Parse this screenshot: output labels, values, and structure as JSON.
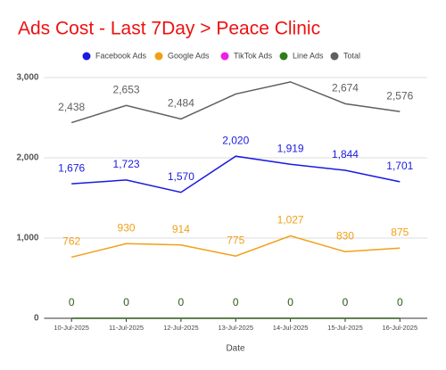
{
  "chart_data": {
    "type": "line",
    "title": "Ads Cost - Last 7Day > Peace Clinic",
    "x_label": "Date",
    "categories": [
      "10-Jul-2025",
      "11-Jul-2025",
      "12-Jul-2025",
      "13-Jul-2025",
      "14-Jul-2025",
      "15-Jul-2025",
      "16-Jul-2025"
    ],
    "series": [
      {
        "name": "Facebook Ads",
        "color": "#1a1ae0",
        "values": [
          1676,
          1723,
          1570,
          2020,
          1919,
          1844,
          1701
        ],
        "value_labels": [
          "1,676",
          "1,723",
          "1,570",
          "2,020",
          "1,919",
          "1,844",
          "1,701"
        ]
      },
      {
        "name": "Google Ads",
        "color": "#f29f16",
        "values": [
          762,
          930,
          914,
          775,
          1027,
          830,
          875
        ],
        "value_labels": [
          "762",
          "930",
          "914",
          "775",
          "1,027",
          "830",
          "875"
        ]
      },
      {
        "name": "TikTok Ads",
        "color": "#ee1ee8",
        "values": [
          0,
          0,
          0,
          0,
          0,
          0,
          0
        ]
      },
      {
        "name": "Line Ads",
        "color": "#2e7d1a",
        "values": [
          0,
          0,
          0,
          0,
          0,
          0,
          0
        ]
      },
      {
        "name": "Total",
        "color": "#5f5f5f",
        "values": [
          2438,
          2653,
          2484,
          2795,
          2946,
          2674,
          2576
        ],
        "value_labels": [
          "2,438",
          "2,653",
          "2,484",
          null,
          null,
          "2,674",
          "2,576"
        ]
      }
    ],
    "ylim": [
      0,
      3000
    ],
    "yticks": [
      0,
      {
        "value": 1000,
        "label": "1,000"
      },
      {
        "value": 2000,
        "label": "2,000"
      },
      {
        "value": 3000,
        "label": "3,000"
      }
    ],
    "grid": true,
    "legend": "top"
  }
}
